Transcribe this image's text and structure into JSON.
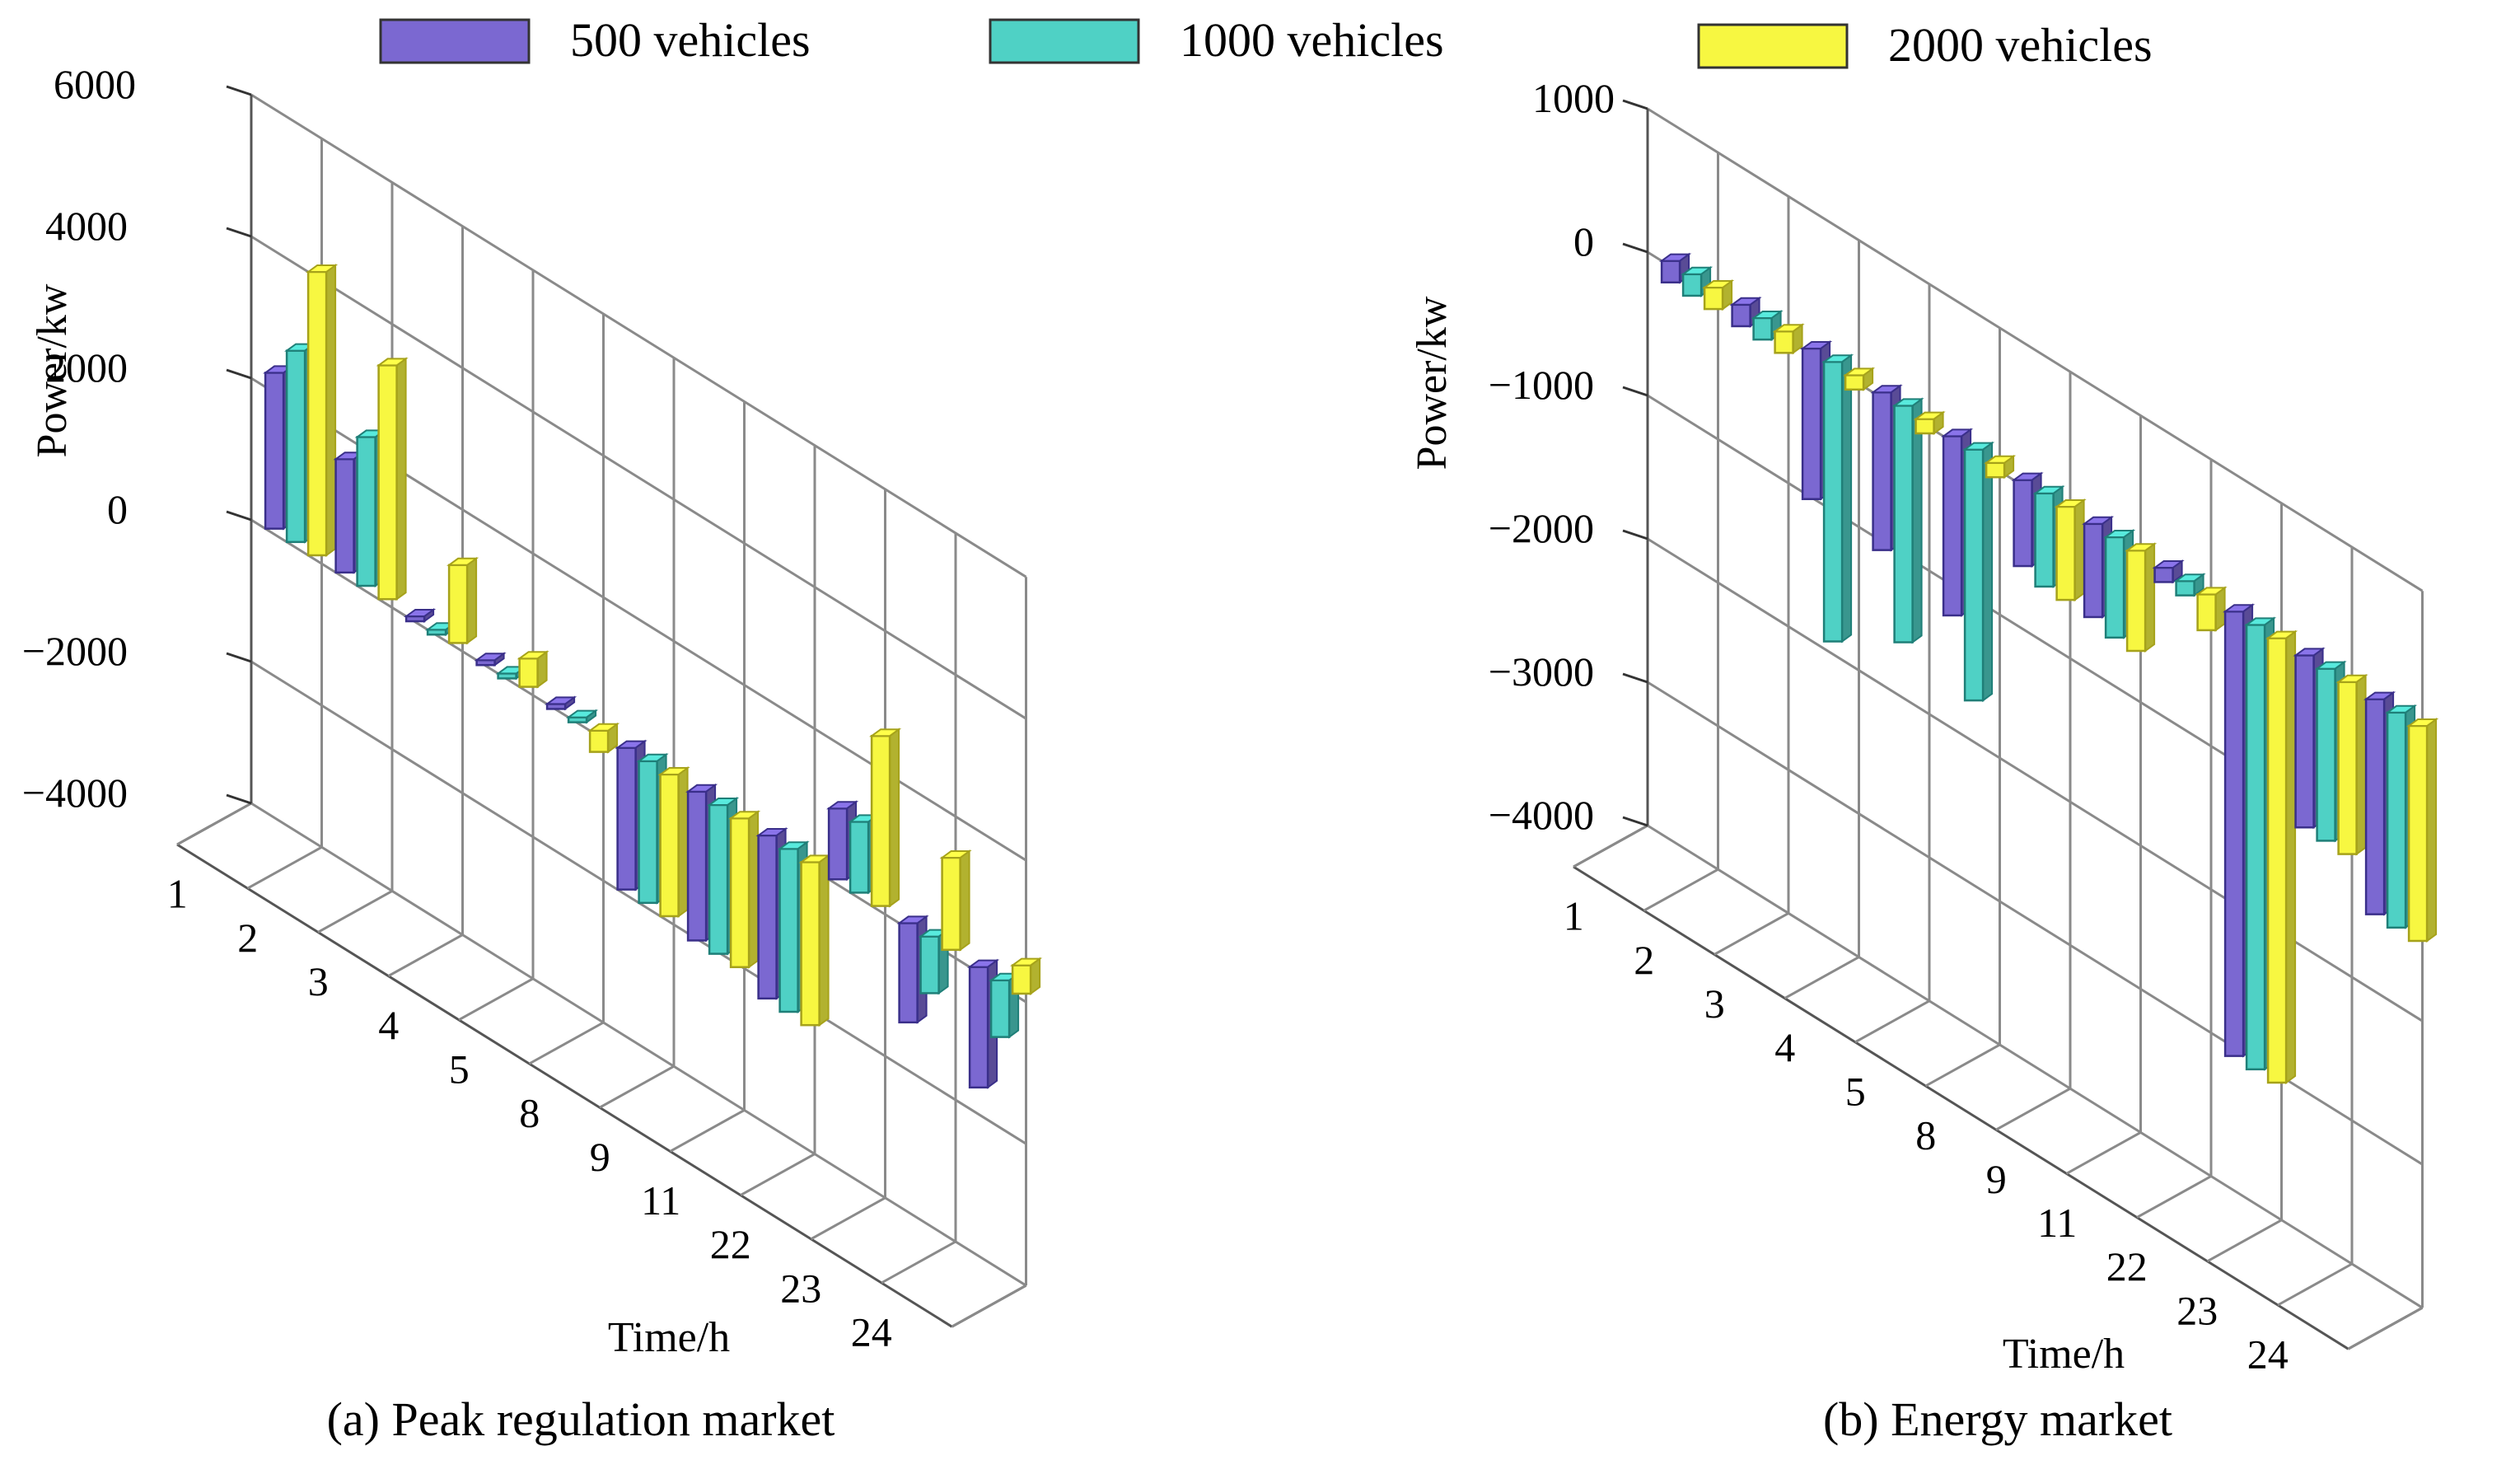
{
  "legend": {
    "items": [
      {
        "label": "500 vehicles",
        "color": "#7b68d1",
        "edge": "#3a2f8a"
      },
      {
        "label": "1000 vehicles",
        "color": "#4fd1c5",
        "edge": "#1f7f78"
      },
      {
        "label": "2000 vehicles",
        "color": "#f7f741",
        "edge": "#a6a21a"
      }
    ]
  },
  "chart_data": [
    {
      "type": "bar3d",
      "caption": "(a) Peak regulation market",
      "ylabel": "Power/kw",
      "xlabel": "Time/h",
      "ylim": [
        -4000,
        6000
      ],
      "yticks": [
        6000,
        4000,
        2000,
        0,
        -2000,
        -4000
      ],
      "ytick_labels": [
        "6000",
        "4000",
        "2000",
        "0",
        "−2000",
        "−4000"
      ],
      "categories": [
        "1",
        "2",
        "3",
        "4",
        "5",
        "8",
        "9",
        "11",
        "22",
        "23",
        "24"
      ],
      "series": [
        {
          "name": "500 vehicles",
          "values": [
            2200,
            1600,
            0,
            0,
            0,
            -2000,
            -2100,
            -2300,
            1000,
            -1400,
            -1700
          ]
        },
        {
          "name": "1000 vehicles",
          "values": [
            2700,
            2100,
            0,
            0,
            0,
            -2000,
            -2100,
            -2300,
            1000,
            -800,
            -800
          ]
        },
        {
          "name": "2000 vehicles",
          "values": [
            4000,
            3300,
            1100,
            400,
            -300,
            -2000,
            -2100,
            -2300,
            2400,
            1300,
            400
          ]
        }
      ]
    },
    {
      "type": "bar3d",
      "caption": "(b) Energy market",
      "ylabel": "Power/kw",
      "xlabel": "Time/h",
      "ylim": [
        -4000,
        1000
      ],
      "yticks": [
        1000,
        0,
        -1000,
        -2000,
        -3000,
        -4000
      ],
      "ytick_labels": [
        "1000",
        "0",
        "−1000",
        "−2000",
        "−3000",
        "−4000"
      ],
      "categories": [
        "1",
        "2",
        "3",
        "4",
        "5",
        "8",
        "9",
        "11",
        "22",
        "23",
        "24"
      ],
      "series": [
        {
          "name": "500 vehicles",
          "values": [
            -150,
            -150,
            -1050,
            -1100,
            -1250,
            -600,
            -650,
            -100,
            -3100,
            -1200,
            -1500
          ]
        },
        {
          "name": "1000 vehicles",
          "values": [
            -150,
            -150,
            -1950,
            -1650,
            -1750,
            -650,
            -700,
            -100,
            -3100,
            -1200,
            -1500
          ]
        },
        {
          "name": "2000 vehicles",
          "values": [
            -150,
            -150,
            -100,
            -100,
            -100,
            -650,
            -700,
            -250,
            -3100,
            -1200,
            -1500
          ]
        }
      ]
    }
  ]
}
